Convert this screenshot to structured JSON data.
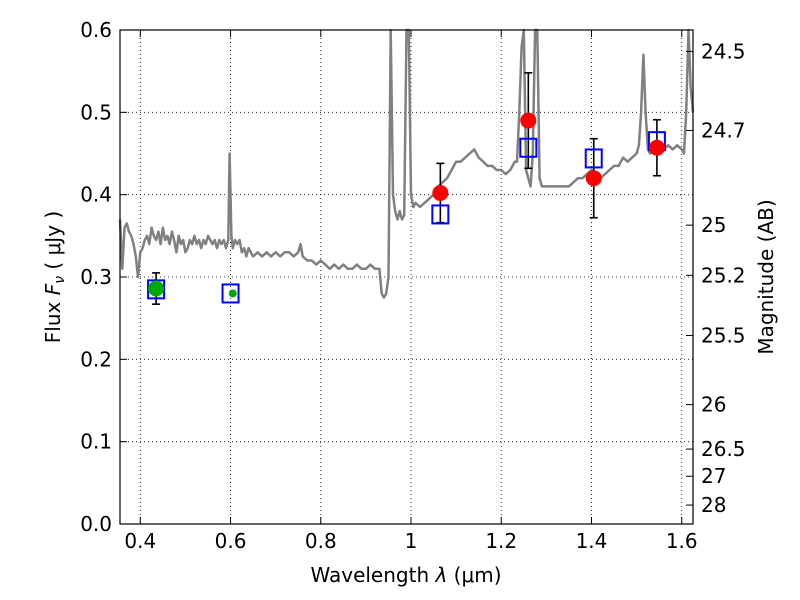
{
  "chart_data": {
    "type": "scatter",
    "xlabel": "Wavelength  λ (μm)",
    "ylabel": "Flux  F_ν  ( μJy )",
    "ylabel_parts": {
      "prefix": "Flux  ",
      "symbol": "F",
      "subscript": "ν",
      "suffix": "  ( μJy )"
    },
    "xlabel_parts": {
      "prefix": "Wavelength  ",
      "symbol": "λ",
      "suffix": " (μm)"
    },
    "y2label": "Magnitude (AB)",
    "xlim": [
      0.355,
      1.625
    ],
    "ylim": [
      0.0,
      0.6
    ],
    "grid": true,
    "x_ticks": [
      {
        "value": 0.4,
        "label": "0.4"
      },
      {
        "value": 0.6,
        "label": "0.6"
      },
      {
        "value": 0.8,
        "label": "0.8"
      },
      {
        "value": 1.0,
        "label": "1"
      },
      {
        "value": 1.2,
        "label": "1.2"
      },
      {
        "value": 1.4,
        "label": "1.4"
      },
      {
        "value": 1.6,
        "label": "1.6"
      }
    ],
    "y_ticks": [
      {
        "value": 0.0,
        "label": "0.0"
      },
      {
        "value": 0.1,
        "label": "0.1"
      },
      {
        "value": 0.2,
        "label": "0.2"
      },
      {
        "value": 0.3,
        "label": "0.3"
      },
      {
        "value": 0.4,
        "label": "0.4"
      },
      {
        "value": 0.5,
        "label": "0.5"
      },
      {
        "value": 0.6,
        "label": "0.6"
      }
    ],
    "y2_ticks": [
      {
        "label": "24.5",
        "flux": 0.574
      },
      {
        "label": "24.7",
        "flux": 0.478
      },
      {
        "label": "25",
        "flux": 0.363
      },
      {
        "label": "25.2",
        "flux": 0.302
      },
      {
        "label": "25.5",
        "flux": 0.229
      },
      {
        "label": "26",
        "flux": 0.145
      },
      {
        "label": "26.5",
        "flux": 0.091
      },
      {
        "label": "27",
        "flux": 0.058
      },
      {
        "label": "28",
        "flux": 0.023
      }
    ],
    "series": [
      {
        "kind": "line",
        "color": "#808080",
        "points": [
          [
            0.355,
            0.37
          ],
          [
            0.36,
            0.31
          ],
          [
            0.365,
            0.36
          ],
          [
            0.37,
            0.365
          ],
          [
            0.375,
            0.355
          ],
          [
            0.38,
            0.35
          ],
          [
            0.385,
            0.34
          ],
          [
            0.39,
            0.325
          ],
          [
            0.395,
            0.3
          ],
          [
            0.4,
            0.33
          ],
          [
            0.405,
            0.335
          ],
          [
            0.41,
            0.345
          ],
          [
            0.415,
            0.35
          ],
          [
            0.42,
            0.34
          ],
          [
            0.425,
            0.36
          ],
          [
            0.43,
            0.35
          ],
          [
            0.435,
            0.345
          ],
          [
            0.44,
            0.355
          ],
          [
            0.445,
            0.34
          ],
          [
            0.45,
            0.36
          ],
          [
            0.455,
            0.345
          ],
          [
            0.46,
            0.35
          ],
          [
            0.465,
            0.34
          ],
          [
            0.47,
            0.355
          ],
          [
            0.475,
            0.345
          ],
          [
            0.48,
            0.33
          ],
          [
            0.485,
            0.35
          ],
          [
            0.49,
            0.34
          ],
          [
            0.495,
            0.345
          ],
          [
            0.5,
            0.33
          ],
          [
            0.505,
            0.335
          ],
          [
            0.51,
            0.345
          ],
          [
            0.515,
            0.34
          ],
          [
            0.52,
            0.35
          ],
          [
            0.525,
            0.34
          ],
          [
            0.53,
            0.345
          ],
          [
            0.535,
            0.335
          ],
          [
            0.54,
            0.345
          ],
          [
            0.545,
            0.34
          ],
          [
            0.55,
            0.35
          ],
          [
            0.555,
            0.345
          ],
          [
            0.56,
            0.34
          ],
          [
            0.565,
            0.345
          ],
          [
            0.57,
            0.335
          ],
          [
            0.575,
            0.345
          ],
          [
            0.58,
            0.34
          ],
          [
            0.585,
            0.345
          ],
          [
            0.59,
            0.335
          ],
          [
            0.595,
            0.345
          ],
          [
            0.598,
            0.45
          ],
          [
            0.602,
            0.35
          ],
          [
            0.605,
            0.335
          ],
          [
            0.61,
            0.345
          ],
          [
            0.615,
            0.34
          ],
          [
            0.62,
            0.345
          ],
          [
            0.625,
            0.33
          ],
          [
            0.63,
            0.335
          ],
          [
            0.635,
            0.325
          ],
          [
            0.64,
            0.335
          ],
          [
            0.645,
            0.33
          ],
          [
            0.65,
            0.325
          ],
          [
            0.66,
            0.33
          ],
          [
            0.67,
            0.325
          ],
          [
            0.68,
            0.33
          ],
          [
            0.69,
            0.325
          ],
          [
            0.7,
            0.33
          ],
          [
            0.71,
            0.325
          ],
          [
            0.72,
            0.33
          ],
          [
            0.73,
            0.33
          ],
          [
            0.74,
            0.325
          ],
          [
            0.75,
            0.33
          ],
          [
            0.755,
            0.34
          ],
          [
            0.76,
            0.325
          ],
          [
            0.77,
            0.32
          ],
          [
            0.78,
            0.32
          ],
          [
            0.79,
            0.315
          ],
          [
            0.8,
            0.32
          ],
          [
            0.81,
            0.315
          ],
          [
            0.82,
            0.31
          ],
          [
            0.83,
            0.315
          ],
          [
            0.84,
            0.31
          ],
          [
            0.85,
            0.315
          ],
          [
            0.86,
            0.31
          ],
          [
            0.87,
            0.31
          ],
          [
            0.88,
            0.315
          ],
          [
            0.89,
            0.31
          ],
          [
            0.9,
            0.31
          ],
          [
            0.91,
            0.315
          ],
          [
            0.92,
            0.31
          ],
          [
            0.93,
            0.31
          ],
          [
            0.935,
            0.28
          ],
          [
            0.94,
            0.275
          ],
          [
            0.945,
            0.28
          ],
          [
            0.95,
            0.3
          ],
          [
            0.955,
            0.6
          ],
          [
            0.96,
            0.4
          ],
          [
            0.965,
            0.38
          ],
          [
            0.97,
            0.37
          ],
          [
            0.975,
            0.38
          ],
          [
            0.98,
            0.37
          ],
          [
            0.985,
            0.375
          ],
          [
            0.99,
            0.6
          ],
          [
            0.995,
            0.6
          ],
          [
            1.0,
            0.4
          ],
          [
            1.005,
            0.385
          ],
          [
            1.01,
            0.39
          ],
          [
            1.02,
            0.385
          ],
          [
            1.03,
            0.39
          ],
          [
            1.04,
            0.395
          ],
          [
            1.05,
            0.4
          ],
          [
            1.06,
            0.41
          ],
          [
            1.07,
            0.415
          ],
          [
            1.08,
            0.42
          ],
          [
            1.09,
            0.43
          ],
          [
            1.1,
            0.44
          ],
          [
            1.11,
            0.44
          ],
          [
            1.12,
            0.445
          ],
          [
            1.13,
            0.45
          ],
          [
            1.14,
            0.455
          ],
          [
            1.15,
            0.445
          ],
          [
            1.16,
            0.44
          ],
          [
            1.17,
            0.435
          ],
          [
            1.18,
            0.435
          ],
          [
            1.19,
            0.43
          ],
          [
            1.2,
            0.43
          ],
          [
            1.21,
            0.425
          ],
          [
            1.22,
            0.43
          ],
          [
            1.23,
            0.44
          ],
          [
            1.235,
            0.44
          ],
          [
            1.24,
            0.5
          ],
          [
            1.245,
            0.58
          ],
          [
            1.25,
            0.6
          ],
          [
            1.255,
            0.43
          ],
          [
            1.26,
            0.42
          ],
          [
            1.265,
            0.41
          ],
          [
            1.27,
            0.45
          ],
          [
            1.275,
            0.6
          ],
          [
            1.28,
            0.6
          ],
          [
            1.285,
            0.42
          ],
          [
            1.29,
            0.41
          ],
          [
            1.3,
            0.41
          ],
          [
            1.31,
            0.41
          ],
          [
            1.32,
            0.41
          ],
          [
            1.33,
            0.41
          ],
          [
            1.34,
            0.41
          ],
          [
            1.35,
            0.41
          ],
          [
            1.36,
            0.415
          ],
          [
            1.37,
            0.42
          ],
          [
            1.38,
            0.42
          ],
          [
            1.39,
            0.425
          ],
          [
            1.4,
            0.43
          ],
          [
            1.41,
            0.425
          ],
          [
            1.42,
            0.42
          ],
          [
            1.43,
            0.425
          ],
          [
            1.44,
            0.43
          ],
          [
            1.45,
            0.435
          ],
          [
            1.46,
            0.435
          ],
          [
            1.47,
            0.445
          ],
          [
            1.48,
            0.44
          ],
          [
            1.49,
            0.445
          ],
          [
            1.5,
            0.45
          ],
          [
            1.505,
            0.46
          ],
          [
            1.51,
            0.5
          ],
          [
            1.515,
            0.57
          ],
          [
            1.52,
            0.5
          ],
          [
            1.525,
            0.455
          ],
          [
            1.53,
            0.45
          ],
          [
            1.54,
            0.455
          ],
          [
            1.55,
            0.46
          ],
          [
            1.56,
            0.455
          ],
          [
            1.57,
            0.46
          ],
          [
            1.58,
            0.455
          ],
          [
            1.59,
            0.46
          ],
          [
            1.6,
            0.455
          ],
          [
            1.605,
            0.45
          ],
          [
            1.61,
            0.5
          ],
          [
            1.615,
            0.6
          ],
          [
            1.62,
            0.53
          ],
          [
            1.625,
            0.5
          ]
        ]
      },
      {
        "kind": "points",
        "marker": "circle",
        "color": "#ff0000",
        "points": [
          {
            "x": 1.065,
            "y": 0.402,
            "err": 0.036
          },
          {
            "x": 1.26,
            "y": 0.49,
            "err": 0.058
          },
          {
            "x": 1.405,
            "y": 0.42,
            "err": 0.048
          },
          {
            "x": 1.545,
            "y": 0.457,
            "err": 0.034
          }
        ]
      },
      {
        "kind": "points",
        "marker": "circle",
        "color": "#00aa00",
        "points": [
          {
            "x": 0.435,
            "y": 0.286,
            "err": 0.019
          },
          {
            "x": 0.605,
            "y": 0.28,
            "err": 0.0
          }
        ]
      },
      {
        "kind": "points",
        "marker": "square",
        "color": "#0000ff",
        "points": [
          {
            "x": 0.435,
            "y": 0.285
          },
          {
            "x": 0.6,
            "y": 0.28
          },
          {
            "x": 1.065,
            "y": 0.376
          },
          {
            "x": 1.26,
            "y": 0.457
          },
          {
            "x": 1.405,
            "y": 0.444
          },
          {
            "x": 1.545,
            "y": 0.465
          }
        ]
      }
    ]
  }
}
